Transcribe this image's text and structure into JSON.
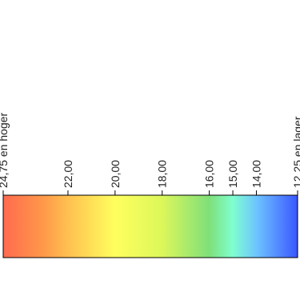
{
  "chart_data": {
    "type": "heatmap",
    "title": "",
    "colorbar": {
      "orientation": "horizontal",
      "range": [
        12.25,
        24.75
      ],
      "direction": "descending",
      "ticks": [
        {
          "value": 24.75,
          "label": "24,75 en hoger"
        },
        {
          "value": 22.0,
          "label": "22,00"
        },
        {
          "value": 20.0,
          "label": "20,00"
        },
        {
          "value": 18.0,
          "label": "18,00"
        },
        {
          "value": 16.0,
          "label": "16,00"
        },
        {
          "value": 15.0,
          "label": "15,00"
        },
        {
          "value": 14.0,
          "label": "14,00"
        },
        {
          "value": 12.25,
          "label": "12,25 en lager"
        }
      ],
      "color_stops": [
        {
          "value": 24.75,
          "color": "#ff6a4e"
        },
        {
          "value": 23.0,
          "color": "#ff9a4a"
        },
        {
          "value": 22.0,
          "color": "#ffc050"
        },
        {
          "value": 20.0,
          "color": "#ffff5e"
        },
        {
          "value": 18.0,
          "color": "#dcf75a"
        },
        {
          "value": 16.0,
          "color": "#7ee07a"
        },
        {
          "value": 15.0,
          "color": "#7fffd0"
        },
        {
          "value": 14.0,
          "color": "#6ec4ff"
        },
        {
          "value": 12.25,
          "color": "#3a56ff"
        }
      ]
    }
  }
}
